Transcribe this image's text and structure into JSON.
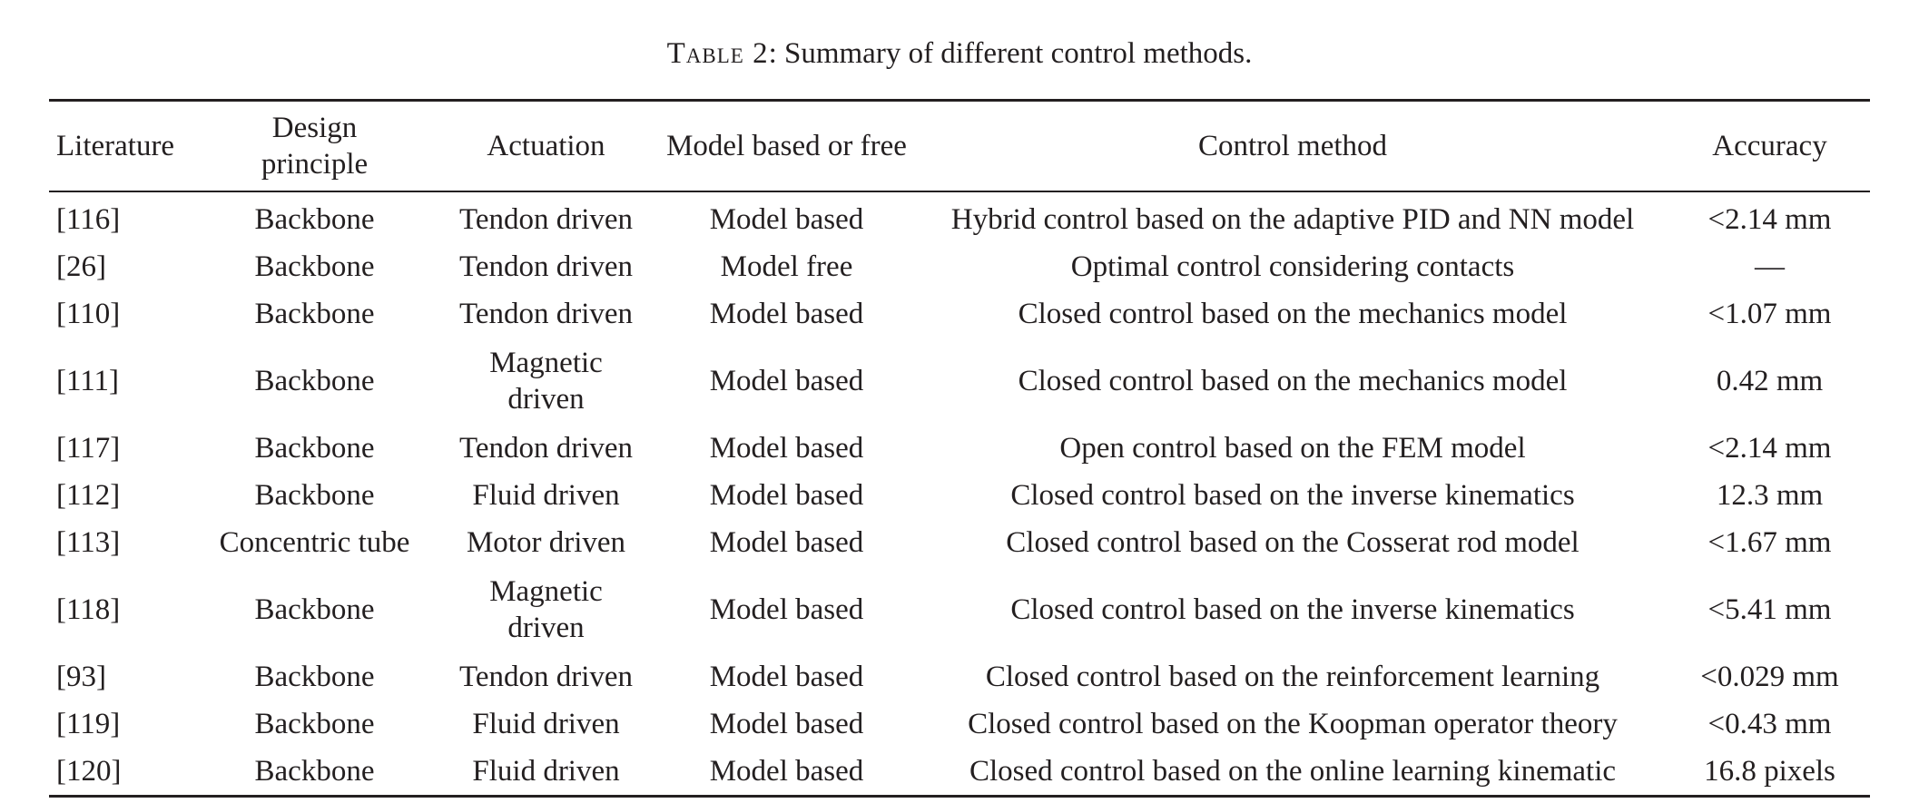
{
  "caption": {
    "label": "Table 2",
    "text": ": Summary of different control methods."
  },
  "table": {
    "headers": {
      "literature": "Literature",
      "design_line1": "Design",
      "design_line2": "principle",
      "actuation": "Actuation",
      "model": "Model based or free",
      "control": "Control method",
      "accuracy": "Accuracy"
    },
    "rows": [
      {
        "literature": "[116]",
        "design": "Backbone",
        "actuation": "Tendon driven",
        "model": "Model based",
        "control": "Hybrid control based on the adaptive PID and NN model",
        "accuracy": "<2.14 mm"
      },
      {
        "literature": "[26]",
        "design": "Backbone",
        "actuation": "Tendon driven",
        "model": "Model free",
        "control": "Optimal control considering contacts",
        "accuracy": "—"
      },
      {
        "literature": "[110]",
        "design": "Backbone",
        "actuation": "Tendon driven",
        "model": "Model based",
        "control": "Closed control based on the mechanics model",
        "accuracy": "<1.07 mm"
      },
      {
        "literature": "[111]",
        "design": "Backbone",
        "actuation": "Magnetic driven",
        "model": "Model based",
        "control": "Closed control based on the mechanics model",
        "accuracy": "0.42 mm"
      },
      {
        "literature": "[117]",
        "design": "Backbone",
        "actuation": "Tendon driven",
        "model": "Model based",
        "control": "Open control based on the FEM model",
        "accuracy": "<2.14 mm"
      },
      {
        "literature": "[112]",
        "design": "Backbone",
        "actuation": "Fluid driven",
        "model": "Model based",
        "control": "Closed control based on the inverse kinematics",
        "accuracy": "12.3 mm"
      },
      {
        "literature": "[113]",
        "design": "Concentric tube",
        "actuation": "Motor driven",
        "model": "Model based",
        "control": "Closed control based on the Cosserat rod model",
        "accuracy": "<1.67 mm"
      },
      {
        "literature": "[118]",
        "design": "Backbone",
        "actuation": "Magnetic driven",
        "model": "Model based",
        "control": "Closed control based on the inverse kinematics",
        "accuracy": "<5.41 mm"
      },
      {
        "literature": "[93]",
        "design": "Backbone",
        "actuation": "Tendon driven",
        "model": "Model based",
        "control": "Closed control based on the reinforcement learning",
        "accuracy": "<0.029 mm"
      },
      {
        "literature": "[119]",
        "design": "Backbone",
        "actuation": "Fluid driven",
        "model": "Model based",
        "control": "Closed control based on the Koopman operator theory",
        "accuracy": "<0.43 mm"
      },
      {
        "literature": "[120]",
        "design": "Backbone",
        "actuation": "Fluid driven",
        "model": "Model based",
        "control": "Closed control based on the online learning kinematic",
        "accuracy": "16.8 pixels"
      }
    ]
  }
}
